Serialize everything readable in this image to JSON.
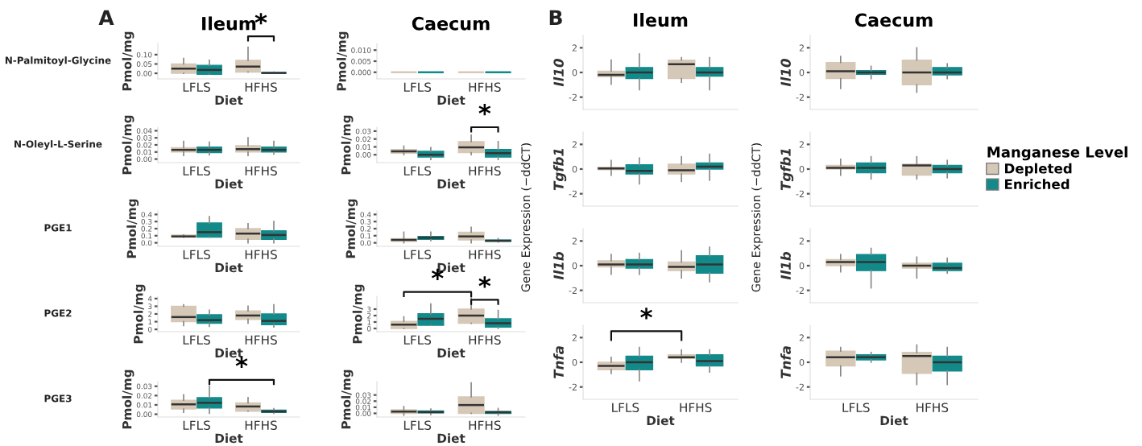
{
  "chart_data": [
    {
      "type": "box",
      "title": "Ileum",
      "xlabel": "Diet",
      "ylabel": "Pmol/mg",
      "categories": [
        "LFLS",
        "HFHS"
      ],
      "ylim": [
        -0.03,
        0.16
      ],
      "yticks": [
        {
          "value": 0.0,
          "label": "0.00"
        },
        {
          "value": 0.05,
          "label": "0.05"
        },
        {
          "value": 0.1,
          "label": "0.10"
        }
      ],
      "annotations": [
        "A",
        "N-Palmitoyl-Glycine",
        "*"
      ],
      "series": [
        {
          "color": "#d6c8b6",
          "boxes": [
            {
              "low": 0.0,
              "q1": 0.0,
              "median": 0.025,
              "q3": 0.05,
              "high": 0.08
            },
            {
              "low": 0.007,
              "q1": 0.007,
              "median": 0.036,
              "q3": 0.07,
              "high": 0.14
            }
          ]
        },
        {
          "color": "#138a8a",
          "boxes": [
            {
              "low": -0.005,
              "q1": -0.005,
              "median": 0.018,
              "q3": 0.043,
              "high": 0.07
            },
            {
              "low": 0.0,
              "q1": 0.0,
              "median": 0.002,
              "q3": 0.004,
              "high": 0.006
            }
          ]
        }
      ]
    },
    {
      "type": "box",
      "title": "Caecum",
      "xlabel": "Diet",
      "ylabel": "Pmol/mg",
      "categories": [
        "LFLS",
        "HFHS"
      ],
      "ylim": [
        -0.003,
        0.013
      ],
      "yticks": [
        {
          "value": 0.0,
          "label": "0.000"
        },
        {
          "value": 0.005,
          "label": "0.005"
        },
        {
          "value": 0.01,
          "label": "0.010"
        }
      ],
      "series": [
        {
          "color": "#d6c8b6",
          "boxes": [
            {
              "low": 0.0,
              "q1": 0.0,
              "median": 0.0,
              "q3": 0.0,
              "high": 0.0
            },
            {
              "low": 0.0,
              "q1": 0.0,
              "median": 0.0,
              "q3": 0.0,
              "high": 0.0
            }
          ]
        },
        {
          "color": "#138a8a",
          "boxes": [
            {
              "low": 0.0,
              "q1": 0.0,
              "median": 0.0,
              "q3": 0.0,
              "high": 0.0
            },
            {
              "low": 0.0,
              "q1": 0.0,
              "median": 0.0,
              "q3": 0.0,
              "high": 0.0
            }
          ]
        }
      ]
    },
    {
      "type": "box",
      "xlabel": "Diet",
      "ylabel": "Pmol/mg",
      "categories": [
        "LFLS",
        "HFHS"
      ],
      "ylim": [
        -0.005,
        0.045
      ],
      "yticks": [
        {
          "value": 0.0,
          "label": "0.00"
        },
        {
          "value": 0.01,
          "label": "0.01"
        },
        {
          "value": 0.02,
          "label": "0.02"
        },
        {
          "value": 0.03,
          "label": "0.03"
        },
        {
          "value": 0.04,
          "label": "0.04"
        }
      ],
      "annotations": [
        "N-Oleyl-L-Serine"
      ],
      "series": [
        {
          "color": "#d6c8b6",
          "boxes": [
            {
              "low": 0.005,
              "q1": 0.01,
              "median": 0.013,
              "q3": 0.016,
              "high": 0.025
            },
            {
              "low": 0.005,
              "q1": 0.01,
              "median": 0.014,
              "q3": 0.019,
              "high": 0.03
            }
          ]
        },
        {
          "color": "#138a8a",
          "boxes": [
            {
              "low": 0.006,
              "q1": 0.009,
              "median": 0.013,
              "q3": 0.017,
              "high": 0.024
            },
            {
              "low": 0.007,
              "q1": 0.01,
              "median": 0.013,
              "q3": 0.017,
              "high": 0.025
            }
          ]
        }
      ]
    },
    {
      "type": "box",
      "xlabel": "Diet",
      "ylabel": "Pmol/mg",
      "categories": [
        "LFLS",
        "HFHS"
      ],
      "ylim": [
        -0.01,
        0.035
      ],
      "yticks": [
        {
          "value": 0.0,
          "label": "0.00"
        },
        {
          "value": 0.01,
          "label": "0.01"
        },
        {
          "value": 0.02,
          "label": "0.02"
        },
        {
          "value": 0.03,
          "label": "0.03"
        }
      ],
      "annotations": [
        "*"
      ],
      "series": [
        {
          "color": "#d6c8b6",
          "boxes": [
            {
              "low": 0.0,
              "q1": 0.002,
              "median": 0.0044,
              "q3": 0.0067,
              "high": 0.011
            },
            {
              "low": 0.0,
              "q1": 0.0028,
              "median": 0.0094,
              "q3": 0.0167,
              "high": 0.025
            }
          ]
        },
        {
          "color": "#138a8a",
          "boxes": [
            {
              "low": -0.006,
              "q1": -0.003,
              "median": 0.0,
              "q3": 0.0044,
              "high": 0.009
            },
            {
              "low": -0.006,
              "q1": -0.003,
              "median": 0.002,
              "q3": 0.0067,
              "high": 0.0167
            }
          ]
        }
      ]
    },
    {
      "type": "box",
      "xlabel": "Diet",
      "ylabel": "Pmol/mg",
      "categories": [
        "LFLS",
        "HFHS"
      ],
      "ylim": [
        -0.05,
        0.45
      ],
      "yticks": [
        {
          "value": 0.0,
          "label": "0.0"
        },
        {
          "value": 0.1,
          "label": "0.1"
        },
        {
          "value": 0.2,
          "label": "0.2"
        },
        {
          "value": 0.3,
          "label": "0.3"
        },
        {
          "value": 0.4,
          "label": "0.4"
        }
      ],
      "annotations": [
        "PGE1"
      ],
      "series": [
        {
          "color": "#d6c8b6",
          "boxes": [
            {
              "low": 0.08,
              "q1": 0.08,
              "median": 0.09,
              "q3": 0.11,
              "high": 0.11
            },
            {
              "low": 0.0,
              "q1": 0.05,
              "median": 0.13,
              "q3": 0.2,
              "high": 0.27
            }
          ]
        },
        {
          "color": "#138a8a",
          "boxes": [
            {
              "low": 0.08,
              "q1": 0.08,
              "median": 0.15,
              "q3": 0.28,
              "high": 0.37
            },
            {
              "low": 0.0,
              "q1": 0.05,
              "median": 0.11,
              "q3": 0.17,
              "high": 0.3
            }
          ]
        }
      ]
    },
    {
      "type": "box",
      "xlabel": "Diet",
      "ylabel": "Pmol/mg",
      "categories": [
        "LFLS",
        "HFHS"
      ],
      "ylim": [
        -0.05,
        0.45
      ],
      "yticks": [
        {
          "value": 0.0,
          "label": "0.0"
        },
        {
          "value": 0.1,
          "label": "0.1"
        },
        {
          "value": 0.2,
          "label": "0.2"
        },
        {
          "value": 0.3,
          "label": "0.3"
        },
        {
          "value": 0.4,
          "label": "0.4"
        }
      ],
      "series": [
        {
          "color": "#d6c8b6",
          "boxes": [
            {
              "low": 0.0,
              "q1": 0.02,
              "median": 0.04,
              "q3": 0.06,
              "high": 0.15
            },
            {
              "low": 0.0,
              "q1": 0.04,
              "median": 0.09,
              "q3": 0.15,
              "high": 0.22
            }
          ]
        },
        {
          "color": "#138a8a",
          "boxes": [
            {
              "low": 0.03,
              "q1": 0.05,
              "median": 0.07,
              "q3": 0.09,
              "high": 0.15
            },
            {
              "low": 0.01,
              "q1": 0.02,
              "median": 0.03,
              "q3": 0.04,
              "high": 0.06
            }
          ]
        }
      ]
    },
    {
      "type": "box",
      "xlabel": "Diet",
      "ylabel": "Pmol/mg",
      "categories": [
        "LFLS",
        "HFHS"
      ],
      "ylim": [
        -0.3,
        4.3
      ],
      "yticks": [
        0,
        1,
        2,
        3,
        4
      ],
      "annotations": [
        "PGE2"
      ],
      "series": [
        {
          "color": "#d6c8b6",
          "boxes": [
            {
              "low": 0.5,
              "q1": 1.0,
              "median": 1.6,
              "q3": 3.0,
              "high": 3.2
            },
            {
              "low": 0.8,
              "q1": 1.3,
              "median": 1.8,
              "q3": 2.4,
              "high": 3.0
            }
          ]
        },
        {
          "color": "#138a8a",
          "boxes": [
            {
              "low": 0.4,
              "q1": 0.8,
              "median": 1.2,
              "q3": 1.9,
              "high": 2.5
            },
            {
              "low": 0.3,
              "q1": 0.6,
              "median": 1.1,
              "q3": 2.0,
              "high": 3.2
            }
          ]
        }
      ]
    },
    {
      "type": "box",
      "xlabel": "Diet",
      "ylabel": "Pmol/mg",
      "categories": [
        "LFLS",
        "HFHS"
      ],
      "ylim": [
        -0.5,
        5
      ],
      "yticks": [
        0,
        1,
        2,
        3
      ],
      "annotations": [
        "*",
        "*"
      ],
      "series": [
        {
          "color": "#d6c8b6",
          "boxes": [
            {
              "low": 0.0,
              "q1": 0.0,
              "median": 0.6,
              "q3": 1.1,
              "high": 1.8
            },
            {
              "low": 0.8,
              "q1": 0.8,
              "median": 2.0,
              "q3": 3.0,
              "high": 4.8
            }
          ]
        },
        {
          "color": "#138a8a",
          "boxes": [
            {
              "low": 0.5,
              "q1": 0.5,
              "median": 1.5,
              "q3": 2.3,
              "high": 3.8
            },
            {
              "low": 0.0,
              "q1": 0.2,
              "median": 0.8,
              "q3": 1.5,
              "high": 2.8
            }
          ]
        }
      ]
    },
    {
      "type": "box",
      "xlabel": "Diet",
      "ylabel": "Pmol/mg",
      "categories": [
        "LFLS",
        "HFHS"
      ],
      "ylim": [
        -0.003,
        0.035
      ],
      "yticks": [
        {
          "value": 0.0,
          "label": "0.00"
        },
        {
          "value": 0.01,
          "label": "0.01"
        },
        {
          "value": 0.02,
          "label": "0.02"
        },
        {
          "value": 0.03,
          "label": "0.03"
        }
      ],
      "annotations": [
        "PGE3",
        "*"
      ],
      "series": [
        {
          "color": "#d6c8b6",
          "boxes": [
            {
              "low": 0.002,
              "q1": 0.0056,
              "median": 0.0106,
              "q3": 0.015,
              "high": 0.021
            },
            {
              "low": 0.0033,
              "q1": 0.0033,
              "median": 0.0083,
              "q3": 0.0122,
              "high": 0.0178
            }
          ]
        },
        {
          "color": "#138a8a",
          "boxes": [
            {
              "low": 0.001,
              "q1": 0.0067,
              "median": 0.0122,
              "q3": 0.0178,
              "high": 0.03
            },
            {
              "low": 0.001,
              "q1": 0.002,
              "median": 0.003,
              "q3": 0.0044,
              "high": 0.006
            }
          ]
        }
      ]
    },
    {
      "type": "box",
      "xlabel": "Diet",
      "ylabel": "Pmol/mg",
      "categories": [
        "LFLS",
        "HFHS"
      ],
      "ylim": [
        -0.006,
        0.052
      ],
      "yticks": [
        {
          "value": 0.0,
          "label": "0.00"
        },
        {
          "value": 0.01,
          "label": "0.01"
        },
        {
          "value": 0.02,
          "label": "0.02"
        },
        {
          "value": 0.03,
          "label": "0.03"
        }
      ],
      "series": [
        {
          "color": "#d6c8b6",
          "boxes": [
            {
              "low": -0.003,
              "q1": 0.0,
              "median": 0.003,
              "q3": 0.006,
              "high": 0.011
            },
            {
              "low": 0.0,
              "q1": 0.0,
              "median": 0.0136,
              "q3": 0.027,
              "high": 0.05
            }
          ]
        },
        {
          "color": "#138a8a",
          "boxes": [
            {
              "low": -0.002,
              "q1": 0.001,
              "median": 0.002,
              "q3": 0.004,
              "high": 0.007
            },
            {
              "low": -0.003,
              "q1": 0.0,
              "median": 0.002,
              "q3": 0.003,
              "high": 0.008
            }
          ]
        }
      ]
    },
    {
      "type": "box",
      "title": "Ileum",
      "ylabel": "Il10",
      "categories": [
        null,
        null
      ],
      "ylim": [
        -3,
        3
      ],
      "yticks": [
        -2,
        0,
        2
      ],
      "annotations": [
        "B"
      ],
      "series": [
        {
          "color": "#d6c8b6",
          "boxes": [
            {
              "low": -0.95,
              "q1": -0.35,
              "median": -0.2,
              "q3": 0.1,
              "high": 1.0
            },
            {
              "low": -0.8,
              "q1": -0.5,
              "median": 0.67,
              "q3": 1.0,
              "high": 1.2
            }
          ]
        },
        {
          "color": "#138a8a",
          "boxes": [
            {
              "low": -1.4,
              "q1": -0.5,
              "median": 0.0,
              "q3": 0.4,
              "high": 1.5
            },
            {
              "low": -1.4,
              "q1": -0.3,
              "median": 0.0,
              "q3": 0.4,
              "high": 1.2
            }
          ]
        }
      ]
    },
    {
      "type": "box",
      "title": "Caecum",
      "ylabel": "Il10",
      "categories": [
        null,
        null
      ],
      "ylim": [
        -3,
        3
      ],
      "yticks": [
        -2,
        0,
        2
      ],
      "series": [
        {
          "color": "#d6c8b6",
          "boxes": [
            {
              "low": -1.3,
              "q1": -0.5,
              "median": 0.1,
              "q3": 0.8,
              "high": 1.3
            },
            {
              "low": -1.6,
              "q1": -1.0,
              "median": 0.0,
              "q3": 1.0,
              "high": 2.0
            }
          ]
        },
        {
          "color": "#138a8a",
          "boxes": [
            {
              "low": -0.5,
              "q1": -0.15,
              "median": 0.0,
              "q3": 0.15,
              "high": 0.5
            },
            {
              "low": -0.5,
              "q1": -0.2,
              "median": 0.0,
              "q3": 0.4,
              "high": 0.7
            }
          ]
        }
      ]
    },
    {
      "type": "box",
      "ylabel": "Tgfb1",
      "categories": [
        null,
        null
      ],
      "ylim": [
        -3,
        3
      ],
      "yticks": [
        -2,
        0,
        2
      ],
      "annotations": [
        "Gene Expression (−ddCT)"
      ],
      "series": [
        {
          "color": "#d6c8b6",
          "boxes": [
            {
              "low": -0.5,
              "q1": -0.05,
              "median": 0.05,
              "q3": 0.15,
              "high": 0.7
            },
            {
              "low": -1.0,
              "q1": -0.4,
              "median": -0.1,
              "q3": 0.4,
              "high": 1.0
            }
          ]
        },
        {
          "color": "#138a8a",
          "boxes": [
            {
              "low": -1.2,
              "q1": -0.4,
              "median": -0.15,
              "q3": 0.35,
              "high": 0.9
            },
            {
              "low": -0.9,
              "q1": 0.0,
              "median": 0.2,
              "q3": 0.5,
              "high": 1.2
            }
          ]
        }
      ]
    },
    {
      "type": "box",
      "ylabel": "Tgfb1",
      "categories": [
        null,
        null
      ],
      "ylim": [
        -3,
        3
      ],
      "yticks": [
        -2,
        0,
        2
      ],
      "annotations": [
        "Gene Expression (−ddCT)"
      ],
      "legend": "right",
      "legend_title": "Manganese Level",
      "series": [
        {
          "name": "Depleted",
          "color": "#d6c8b6",
          "boxes": [
            {
              "low": -0.5,
              "q1": 0.0,
              "median": 0.1,
              "q3": 0.3,
              "high": 0.8
            },
            {
              "low": -0.8,
              "q1": -0.5,
              "median": 0.3,
              "q3": 0.4,
              "high": 1.0
            }
          ]
        },
        {
          "name": "Enriched",
          "color": "#138a8a",
          "boxes": [
            {
              "low": -0.8,
              "q1": -0.3,
              "median": 0.1,
              "q3": 0.5,
              "high": 1.0
            },
            {
              "low": -0.7,
              "q1": -0.3,
              "median": 0.0,
              "q3": 0.3,
              "high": 0.7
            }
          ]
        }
      ]
    },
    {
      "type": "box",
      "ylabel": "Il1b",
      "categories": [
        null,
        null
      ],
      "ylim": [
        -3,
        3
      ],
      "yticks": [
        -2,
        0,
        2
      ],
      "series": [
        {
          "color": "#d6c8b6",
          "boxes": [
            {
              "low": -0.7,
              "q1": -0.1,
              "median": 0.1,
              "q3": 0.4,
              "high": 0.9
            },
            {
              "low": -1.0,
              "q1": -0.4,
              "median": -0.1,
              "q3": 0.3,
              "high": 1.2
            }
          ]
        },
        {
          "color": "#138a8a",
          "boxes": [
            {
              "low": -0.7,
              "q1": -0.2,
              "median": 0.1,
              "q3": 0.5,
              "high": 1.0
            },
            {
              "low": -1.3,
              "q1": -0.6,
              "median": 0.1,
              "q3": 0.8,
              "high": 1.5
            }
          ]
        }
      ]
    },
    {
      "type": "box",
      "ylabel": "Il1b",
      "categories": [
        null,
        null
      ],
      "ylim": [
        -3,
        3
      ],
      "yticks": [
        -2,
        0,
        2
      ],
      "series": [
        {
          "color": "#d6c8b6",
          "boxes": [
            {
              "low": -0.5,
              "q1": 0.0,
              "median": 0.3,
              "q3": 0.5,
              "high": 0.9
            },
            {
              "low": -1.0,
              "q1": -0.2,
              "median": 0.0,
              "q3": 0.2,
              "high": 0.7
            }
          ]
        },
        {
          "color": "#138a8a",
          "boxes": [
            {
              "low": -1.8,
              "q1": -0.4,
              "median": 0.3,
              "q3": 0.9,
              "high": 1.4
            },
            {
              "low": -0.6,
              "q1": -0.4,
              "median": -0.2,
              "q3": 0.2,
              "high": 0.6
            }
          ]
        }
      ]
    },
    {
      "type": "box",
      "xlabel": "Diet",
      "ylabel": "Tnfa",
      "categories": [
        "LFLS",
        "HFHS"
      ],
      "ylim": [
        -3,
        3
      ],
      "yticks": [
        -2,
        0,
        2
      ],
      "annotations": [
        "*"
      ],
      "series": [
        {
          "color": "#d6c8b6",
          "boxes": [
            {
              "low": -0.9,
              "q1": -0.6,
              "median": -0.3,
              "q3": 0.0,
              "high": 0.4
            },
            {
              "low": 0.0,
              "q1": 0.3,
              "median": 0.4,
              "q3": 0.6,
              "high": 1.0
            }
          ]
        },
        {
          "color": "#138a8a",
          "boxes": [
            {
              "low": -1.5,
              "q1": -0.6,
              "median": 0.0,
              "q3": 0.5,
              "high": 1.2
            },
            {
              "low": -0.8,
              "q1": -0.3,
              "median": 0.1,
              "q3": 0.6,
              "high": 1.0
            }
          ]
        }
      ]
    },
    {
      "type": "box",
      "xlabel": "Diet",
      "ylabel": "Tnfa",
      "categories": [
        "LFLS",
        "HFHS"
      ],
      "ylim": [
        -3,
        3
      ],
      "yticks": [
        -2,
        0,
        2
      ],
      "series": [
        {
          "color": "#d6c8b6",
          "boxes": [
            {
              "low": -1.1,
              "q1": -0.3,
              "median": 0.4,
              "q3": 0.9,
              "high": 1.2
            },
            {
              "low": -1.8,
              "q1": -0.9,
              "median": 0.5,
              "q3": 0.8,
              "high": 1.4
            }
          ]
        },
        {
          "color": "#138a8a",
          "boxes": [
            {
              "low": 0.0,
              "q1": 0.2,
              "median": 0.4,
              "q3": 0.6,
              "high": 0.8
            },
            {
              "low": -1.8,
              "q1": -0.7,
              "median": 0.0,
              "q3": 0.5,
              "high": 1.2
            }
          ]
        }
      ]
    }
  ]
}
